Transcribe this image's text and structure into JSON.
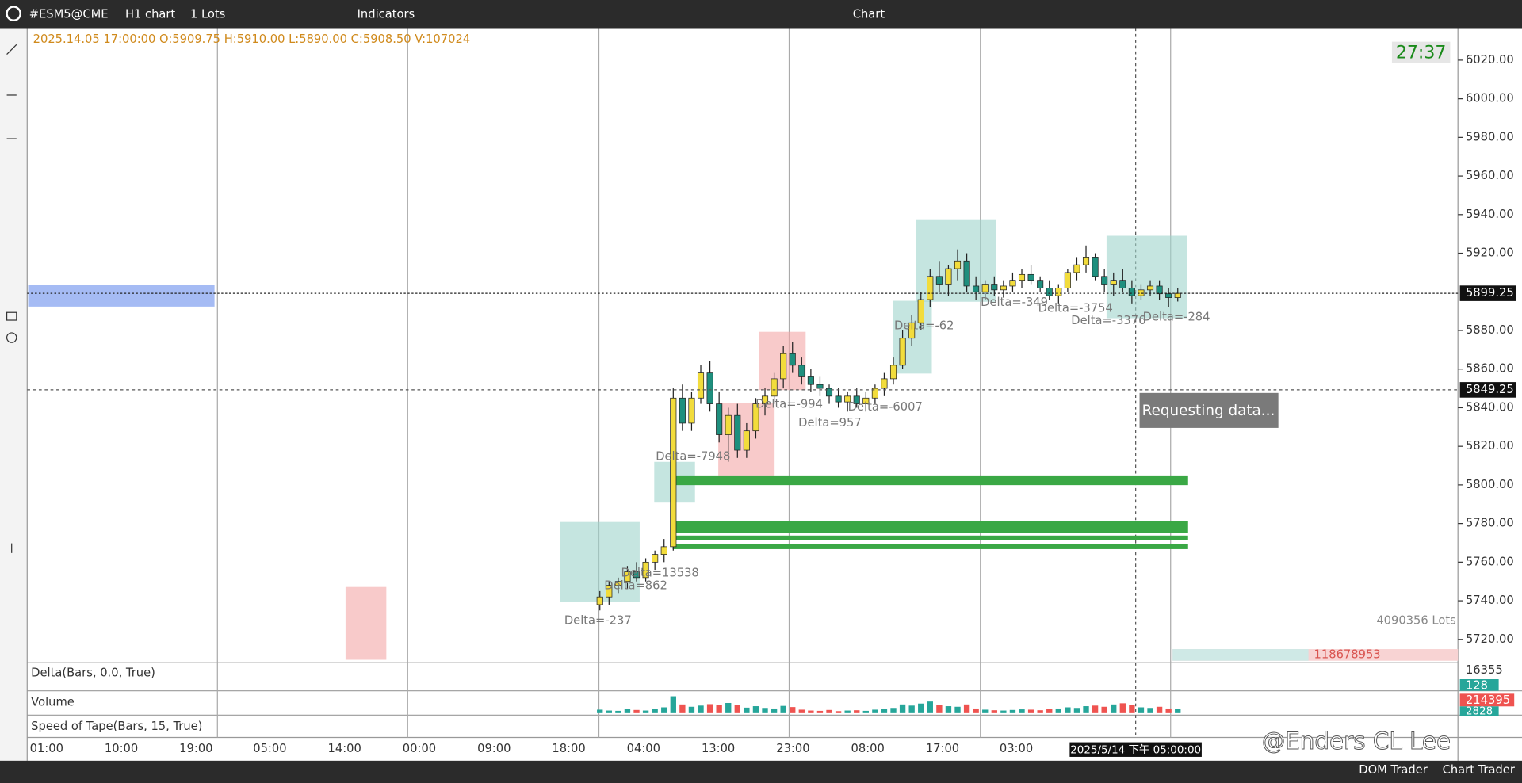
{
  "title_bar": {
    "symbol": "#ESM5@CME",
    "timeframe": "H1 chart",
    "lots": "1 Lots",
    "indicators": "Indicators",
    "window_title": "Chart"
  },
  "ohlc_info": "2025.14.05 17:00:00 O:5909.75 H:5910.00 L:5890.00 C:5908.50 V:107024",
  "timer": "27:37",
  "price_axis": {
    "ticks": [
      {
        "value": 6020,
        "label": "6020.00"
      },
      {
        "value": 6000,
        "label": "6000.00"
      },
      {
        "value": 5980,
        "label": "5980.00"
      },
      {
        "value": 5960,
        "label": "5960.00"
      },
      {
        "value": 5940,
        "label": "5940.00"
      },
      {
        "value": 5920,
        "label": "5920.00"
      },
      {
        "value": 5880,
        "label": "5880.00"
      },
      {
        "value": 5860,
        "label": "5860.00"
      },
      {
        "value": 5840,
        "label": "5840.00"
      },
      {
        "value": 5820,
        "label": "5820.00"
      },
      {
        "value": 5800,
        "label": "5800.00"
      },
      {
        "value": 5780,
        "label": "5780.00"
      },
      {
        "value": 5760,
        "label": "5760.00"
      },
      {
        "value": 5740,
        "label": "5740.00"
      },
      {
        "value": 5720,
        "label": "5720.00"
      }
    ],
    "last_price": 5899.25,
    "cursor_price": 5849.25
  },
  "time_axis": {
    "labels": [
      "01:00",
      "10:00",
      "19:00",
      "05:00",
      "14:00",
      "00:00",
      "09:00",
      "18:00",
      "04:00",
      "13:00",
      "23:00",
      "08:00",
      "17:00",
      "03:00"
    ],
    "cursor_label": "2025/5/14 下午 05:00:00"
  },
  "annotations": [
    "Delta=-237",
    "Delta=862",
    "Delta=13538",
    "Delta=-7948",
    "Delta=-994",
    "Delta=-6007",
    "Delta=957",
    "Delta=-62",
    "Delta=-349",
    "Delta=-3754",
    "Delta=-3376",
    "Delta=-284",
    "Requesting data..."
  ],
  "profile_total": "4090356 Lots",
  "bottom_value": "118678953",
  "panels": {
    "delta": "Delta(Bars, 0.0, True)",
    "delta_value": "16355",
    "delta_small": "128",
    "volume": "Volume",
    "volume_value": "214395",
    "volume_small": "2828",
    "speed": "Speed of Tape(Bars, 15, True)"
  },
  "status_bar": {
    "dom": "DOM Trader",
    "chart_trader": "Chart Trader"
  },
  "watermark": "@Enders CL Lee",
  "candles": [
    [
      5738,
      5745,
      5735,
      5742
    ],
    [
      5742,
      5750,
      5738,
      5748
    ],
    [
      5748,
      5752,
      5744,
      5750
    ],
    [
      5750,
      5758,
      5746,
      5755
    ],
    [
      5755,
      5760,
      5750,
      5752
    ],
    [
      5752,
      5762,
      5750,
      5760
    ],
    [
      5760,
      5766,
      5756,
      5764
    ],
    [
      5764,
      5772,
      5760,
      5768
    ],
    [
      5768,
      5850,
      5766,
      5845
    ],
    [
      5845,
      5852,
      5828,
      5832
    ],
    [
      5832,
      5848,
      5828,
      5845
    ],
    [
      5845,
      5862,
      5842,
      5858
    ],
    [
      5858,
      5864,
      5838,
      5842
    ],
    [
      5842,
      5848,
      5822,
      5826
    ],
    [
      5826,
      5840,
      5812,
      5836
    ],
    [
      5836,
      5842,
      5814,
      5818
    ],
    [
      5818,
      5832,
      5814,
      5828
    ],
    [
      5828,
      5845,
      5824,
      5842
    ],
    [
      5842,
      5850,
      5836,
      5846
    ],
    [
      5846,
      5858,
      5842,
      5855
    ],
    [
      5855,
      5872,
      5850,
      5868
    ],
    [
      5868,
      5874,
      5858,
      5862
    ],
    [
      5862,
      5866,
      5852,
      5856
    ],
    [
      5856,
      5860,
      5848,
      5852
    ],
    [
      5852,
      5856,
      5846,
      5850
    ],
    [
      5850,
      5852,
      5842,
      5846
    ],
    [
      5846,
      5850,
      5840,
      5843
    ],
    [
      5843,
      5848,
      5838,
      5846
    ],
    [
      5846,
      5850,
      5840,
      5842
    ],
    [
      5842,
      5848,
      5838,
      5845
    ],
    [
      5845,
      5852,
      5842,
      5850
    ],
    [
      5850,
      5858,
      5846,
      5855
    ],
    [
      5855,
      5866,
      5852,
      5862
    ],
    [
      5862,
      5880,
      5860,
      5876
    ],
    [
      5876,
      5888,
      5872,
      5884
    ],
    [
      5884,
      5900,
      5880,
      5896
    ],
    [
      5896,
      5912,
      5892,
      5908
    ],
    [
      5908,
      5916,
      5900,
      5904
    ],
    [
      5904,
      5914,
      5898,
      5912
    ],
    [
      5912,
      5922,
      5906,
      5916
    ],
    [
      5916,
      5920,
      5900,
      5903
    ],
    [
      5903,
      5908,
      5896,
      5900
    ],
    [
      5900,
      5906,
      5896,
      5904
    ],
    [
      5904,
      5908,
      5898,
      5901
    ],
    [
      5901,
      5906,
      5897,
      5903
    ],
    [
      5903,
      5910,
      5900,
      5906
    ],
    [
      5906,
      5912,
      5902,
      5909
    ],
    [
      5909,
      5914,
      5904,
      5906
    ],
    [
      5906,
      5908,
      5900,
      5902
    ],
    [
      5902,
      5906,
      5896,
      5898
    ],
    [
      5898,
      5904,
      5894,
      5902
    ],
    [
      5902,
      5912,
      5900,
      5910
    ],
    [
      5910,
      5918,
      5906,
      5914
    ],
    [
      5914,
      5924,
      5910,
      5918
    ],
    [
      5918,
      5920,
      5906,
      5908
    ],
    [
      5908,
      5912,
      5900,
      5904
    ],
    [
      5904,
      5910,
      5898,
      5906
    ],
    [
      5906,
      5912,
      5900,
      5902
    ],
    [
      5902,
      5906,
      5894,
      5898
    ],
    [
      5898,
      5904,
      5896,
      5901
    ],
    [
      5901,
      5906,
      5898,
      5903
    ],
    [
      5903,
      5906,
      5896,
      5899
    ],
    [
      5899,
      5902,
      5892,
      5897
    ],
    [
      5897,
      5902,
      5895,
      5899.25
    ]
  ],
  "volume": [
    12000,
    9000,
    8000,
    15000,
    11000,
    9000,
    14000,
    20000,
    58000,
    30000,
    22000,
    26000,
    31000,
    28000,
    35000,
    27000,
    19000,
    24000,
    18000,
    16000,
    25000,
    21000,
    12000,
    9000,
    8000,
    11000,
    7000,
    9000,
    10000,
    8000,
    12000,
    15000,
    18000,
    30000,
    26000,
    33000,
    40000,
    28000,
    24000,
    22000,
    30000,
    16000,
    12000,
    10000,
    9000,
    11000,
    13000,
    12000,
    10000,
    14000,
    16000,
    20000,
    18000,
    24000,
    26000,
    22000,
    30000,
    34000,
    28000,
    20000,
    18000,
    22000,
    16000,
    14000
  ]
}
